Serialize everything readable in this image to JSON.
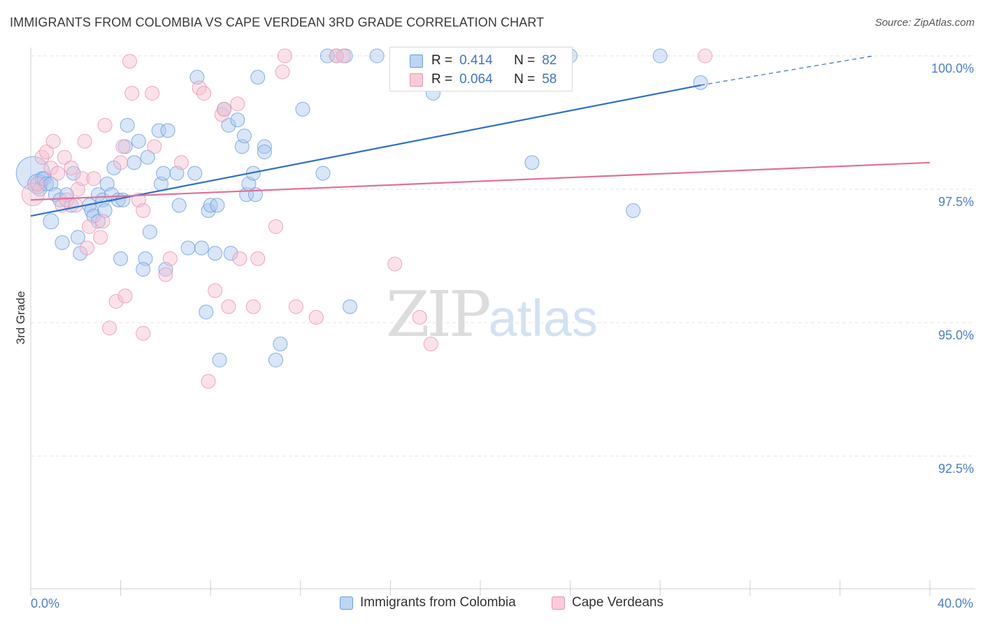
{
  "title": "IMMIGRANTS FROM COLOMBIA VS CAPE VERDEAN 3RD GRADE CORRELATION CHART",
  "source": "Source: ZipAtlas.com",
  "watermark": {
    "zip": "ZIP",
    "atlas": "atlas"
  },
  "colors": {
    "blue_fill": "#a9c8f0",
    "blue_stroke": "#6a9ee0",
    "blue_line": "#2f6fcc",
    "pink_fill": "#f7bfd0",
    "pink_stroke": "#e993b0",
    "pink_line": "#e0709a",
    "tick_text": "#4a7fcf"
  },
  "legend": {
    "r_label": "R =",
    "n_label": "N =",
    "series": [
      {
        "r": "0.414",
        "n": "82"
      },
      {
        "r": "0.064",
        "n": "58"
      }
    ]
  },
  "chart_data": {
    "type": "scatter",
    "xlabel": "",
    "ylabel": "3rd Grade",
    "xlim": [
      0,
      40
    ],
    "ylim": [
      90.2,
      100.3
    ],
    "grid": true,
    "y_ticks": [
      {
        "value": 100.0,
        "label": "100.0%"
      },
      {
        "value": 97.5,
        "label": "97.5%"
      },
      {
        "value": 95.0,
        "label": "95.0%"
      },
      {
        "value": 92.5,
        "label": "92.5%"
      }
    ],
    "x_tick_labels": [
      {
        "value": 0,
        "label": "0.0%"
      },
      {
        "value": 40,
        "label": "40.0%"
      }
    ],
    "x_minor_ticks": [
      0,
      4,
      8,
      12,
      16,
      20,
      24,
      28,
      32,
      36,
      40
    ],
    "series": [
      {
        "name": "Immigrants from Colombia",
        "color_key": "blue",
        "trend": {
          "x0": 0,
          "y0": 97.0,
          "x1": 29.8,
          "y1": 99.45,
          "x_dash_end": 37.5,
          "y_dash_end": 100.0
        },
        "points": [
          [
            0.1,
            97.8,
            24
          ],
          [
            0.3,
            97.6,
            14
          ],
          [
            0.4,
            97.5,
            10
          ],
          [
            0.5,
            97.7,
            10
          ],
          [
            0.6,
            97.7,
            10
          ],
          [
            0.7,
            97.6,
            10
          ],
          [
            0.9,
            97.6,
            10
          ],
          [
            1.1,
            97.4,
            10
          ],
          [
            1.3,
            97.3,
            10
          ],
          [
            1.6,
            97.4,
            10
          ],
          [
            1.8,
            97.2,
            10
          ],
          [
            1.9,
            97.8,
            10
          ],
          [
            0.9,
            96.9,
            11
          ],
          [
            1.4,
            96.5,
            10
          ],
          [
            2.1,
            96.6,
            10
          ],
          [
            2.2,
            96.3,
            10
          ],
          [
            2.6,
            97.2,
            10
          ],
          [
            2.7,
            97.1,
            10
          ],
          [
            2.8,
            97.0,
            10
          ],
          [
            3.0,
            96.9,
            10
          ],
          [
            3.0,
            97.4,
            10
          ],
          [
            3.2,
            97.3,
            10
          ],
          [
            3.3,
            97.1,
            10
          ],
          [
            3.4,
            97.6,
            10
          ],
          [
            3.6,
            97.4,
            10
          ],
          [
            3.7,
            97.9,
            10
          ],
          [
            3.9,
            97.3,
            10
          ],
          [
            4.1,
            97.3,
            10
          ],
          [
            4.2,
            98.3,
            10
          ],
          [
            4.3,
            98.7,
            10
          ],
          [
            4.6,
            98.0,
            10
          ],
          [
            4.8,
            98.4,
            10
          ],
          [
            5.2,
            98.1,
            10
          ],
          [
            5.3,
            96.7,
            10
          ],
          [
            5.7,
            98.6,
            10
          ],
          [
            5.8,
            97.6,
            10
          ],
          [
            5.9,
            97.8,
            10
          ],
          [
            6.1,
            98.6,
            10
          ],
          [
            6.5,
            97.8,
            10
          ],
          [
            5.1,
            96.2,
            10
          ],
          [
            4.0,
            96.2,
            10
          ],
          [
            5.0,
            96.0,
            10
          ],
          [
            6.6,
            97.2,
            10
          ],
          [
            7.3,
            97.8,
            10
          ],
          [
            6.0,
            96.0,
            10
          ],
          [
            7.0,
            96.4,
            10
          ],
          [
            7.4,
            99.6,
            10
          ],
          [
            7.6,
            96.4,
            10
          ],
          [
            7.8,
            95.2,
            10
          ],
          [
            7.9,
            97.1,
            10
          ],
          [
            8.0,
            97.2,
            10
          ],
          [
            8.2,
            96.3,
            10
          ],
          [
            8.3,
            97.2,
            10
          ],
          [
            8.6,
            99.0,
            10
          ],
          [
            8.8,
            98.7,
            10
          ],
          [
            8.9,
            96.3,
            10
          ],
          [
            9.2,
            98.8,
            10
          ],
          [
            9.4,
            98.3,
            10
          ],
          [
            9.5,
            98.5,
            10
          ],
          [
            9.6,
            97.4,
            10
          ],
          [
            9.7,
            97.6,
            10
          ],
          [
            9.9,
            97.8,
            10
          ],
          [
            10.0,
            97.4,
            10
          ],
          [
            10.4,
            98.3,
            10
          ],
          [
            10.1,
            99.6,
            10
          ],
          [
            10.4,
            98.2,
            10
          ],
          [
            8.4,
            94.3,
            10
          ],
          [
            10.9,
            94.3,
            10
          ],
          [
            11.1,
            94.6,
            10
          ],
          [
            12.1,
            99.0,
            10
          ],
          [
            13.0,
            97.8,
            10
          ],
          [
            13.2,
            100.0,
            10
          ],
          [
            13.6,
            100.0,
            10
          ],
          [
            14.0,
            100.0,
            10
          ],
          [
            14.2,
            95.3,
            10
          ],
          [
            15.4,
            100.0,
            10
          ],
          [
            17.9,
            99.3,
            10
          ],
          [
            21.6,
            100.0,
            10
          ],
          [
            22.3,
            98.0,
            10
          ],
          [
            24.0,
            100.0,
            10
          ],
          [
            26.8,
            97.1,
            10
          ],
          [
            28.0,
            100.0,
            10
          ],
          [
            29.8,
            99.5,
            10
          ]
        ]
      },
      {
        "name": "Cape Verdeans",
        "color_key": "pink",
        "trend": {
          "x0": 0,
          "y0": 97.3,
          "x1": 40,
          "y1": 98.0
        },
        "points": [
          [
            0.1,
            97.4,
            16
          ],
          [
            0.3,
            97.6,
            10
          ],
          [
            0.5,
            98.1,
            10
          ],
          [
            0.7,
            98.2,
            10
          ],
          [
            0.9,
            97.9,
            10
          ],
          [
            1.0,
            98.4,
            10
          ],
          [
            1.2,
            97.8,
            10
          ],
          [
            1.4,
            97.2,
            10
          ],
          [
            1.5,
            98.1,
            10
          ],
          [
            1.6,
            97.3,
            10
          ],
          [
            1.8,
            97.9,
            10
          ],
          [
            2.0,
            97.2,
            10
          ],
          [
            2.1,
            97.5,
            10
          ],
          [
            2.3,
            97.7,
            10
          ],
          [
            2.4,
            98.4,
            10
          ],
          [
            2.5,
            96.4,
            10
          ],
          [
            2.6,
            96.8,
            10
          ],
          [
            2.8,
            97.7,
            10
          ],
          [
            3.1,
            96.6,
            10
          ],
          [
            3.2,
            96.9,
            10
          ],
          [
            3.3,
            98.7,
            10
          ],
          [
            3.5,
            94.9,
            10
          ],
          [
            3.8,
            95.4,
            10
          ],
          [
            4.0,
            98.0,
            10
          ],
          [
            4.1,
            98.3,
            10
          ],
          [
            4.2,
            95.5,
            10
          ],
          [
            4.4,
            99.9,
            10
          ],
          [
            4.5,
            99.3,
            10
          ],
          [
            4.8,
            97.3,
            10
          ],
          [
            5.0,
            97.1,
            10
          ],
          [
            5.0,
            94.8,
            10
          ],
          [
            5.4,
            99.3,
            10
          ],
          [
            5.5,
            98.3,
            10
          ],
          [
            6.0,
            95.9,
            10
          ],
          [
            6.2,
            96.2,
            10
          ],
          [
            6.7,
            98.0,
            10
          ],
          [
            7.5,
            99.4,
            10
          ],
          [
            7.7,
            99.3,
            10
          ],
          [
            7.9,
            93.9,
            10
          ],
          [
            8.2,
            95.6,
            10
          ],
          [
            8.5,
            98.9,
            10
          ],
          [
            8.6,
            99.0,
            10
          ],
          [
            8.8,
            95.3,
            10
          ],
          [
            9.3,
            96.2,
            10
          ],
          [
            9.2,
            99.1,
            10
          ],
          [
            9.9,
            95.3,
            10
          ],
          [
            10.1,
            96.2,
            10
          ],
          [
            10.9,
            96.8,
            10
          ],
          [
            11.2,
            99.7,
            10
          ],
          [
            11.3,
            100.0,
            10
          ],
          [
            11.8,
            95.3,
            10
          ],
          [
            12.7,
            95.1,
            10
          ],
          [
            13.6,
            100.0,
            10
          ],
          [
            13.9,
            100.0,
            10
          ],
          [
            16.2,
            96.1,
            10
          ],
          [
            17.3,
            95.1,
            10
          ],
          [
            17.8,
            94.6,
            10
          ],
          [
            30.0,
            100.0,
            10
          ]
        ]
      }
    ]
  },
  "bottom_legend": [
    "Immigrants from Colombia",
    "Cape Verdeans"
  ]
}
